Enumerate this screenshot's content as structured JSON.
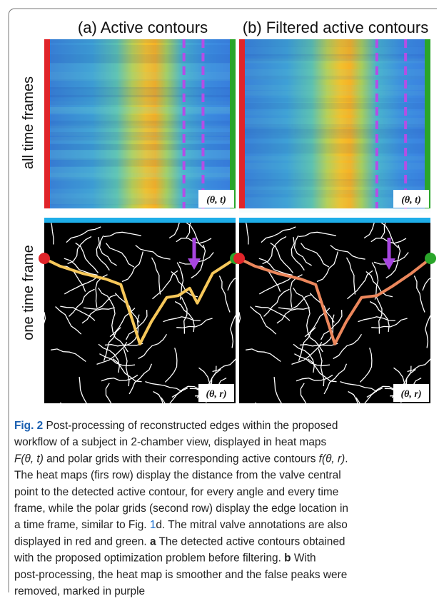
{
  "figure": {
    "panels": [
      {
        "title": "(a) Active contours",
        "heatmap_label": "(θ, t)",
        "polar_label": "(θ, r)"
      },
      {
        "title": "(b) Filtered active contours",
        "heatmap_label": "(θ, t)",
        "polar_label": "(θ, r)"
      }
    ],
    "row_labels": [
      "all time frames",
      "one time frame"
    ]
  },
  "caption": {
    "lines": [
      [
        {
          "text": "Fig. 2",
          "bold": true
        },
        {
          "text": "  Post-processing of reconstructed edges within the proposed"
        }
      ],
      [
        {
          "text": "workflow of a subject in 2-chamber view, displayed in heat maps"
        }
      ],
      [
        {
          "text": "F(θ, t)",
          "italic": true
        },
        {
          "text": " and polar grids with their corresponding active contours "
        },
        {
          "text": "f(θ, r)",
          "italic": true
        },
        {
          "text": "."
        }
      ],
      [
        {
          "text": "The heat maps (firs row) display the distance from the valve central"
        }
      ],
      [
        {
          "text": "point to the detected active contour, for every angle and every time"
        }
      ],
      [
        {
          "text": "frame, while the polar grids (second row) display the edge location in"
        }
      ],
      [
        {
          "text": "a time frame, similar to Fig. "
        },
        {
          "text": "1",
          "link": true
        },
        {
          "text": "d. The mitral valve annotations are also"
        }
      ],
      [
        {
          "text": "displayed in red and green. "
        },
        {
          "text": "a",
          "bold": true
        },
        {
          "text": " The detected active contours obtained"
        }
      ],
      [
        {
          "text": "with the proposed optimization problem before filtering. "
        },
        {
          "text": "b",
          "bold": true
        },
        {
          "text": " With"
        }
      ],
      [
        {
          "text": "post-processing, the heat map is smoother and the false peaks were"
        }
      ],
      [
        {
          "text": "removed, marked in purple"
        }
      ]
    ]
  }
}
